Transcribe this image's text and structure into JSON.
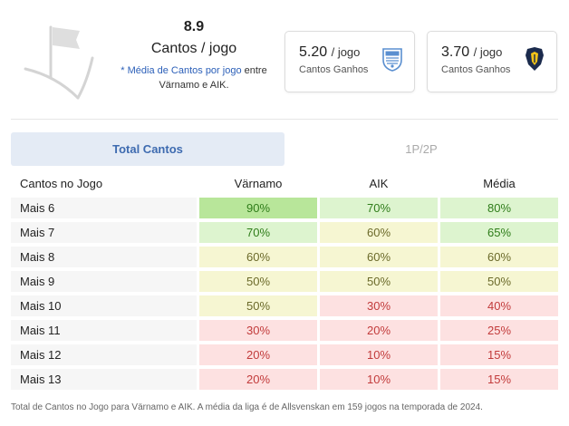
{
  "summary": {
    "total": "8.9",
    "title": "Cantos / jogo",
    "note_blue": "* Média de Cantos por jogo",
    "note_rest": " entre Värnamo e AIK."
  },
  "teams": [
    {
      "value": "5.20",
      "per": "/ jogo",
      "label": "Cantos Ganhos",
      "crest": "varnamo-crest-icon"
    },
    {
      "value": "3.70",
      "per": "/ jogo",
      "label": "Cantos Ganhos",
      "crest": "aik-crest-icon"
    }
  ],
  "tabs": [
    {
      "label": "Total Cantos",
      "active": true
    },
    {
      "label": "1P/2P",
      "active": false
    }
  ],
  "table": {
    "headers": [
      "Cantos no Jogo",
      "Värnamo",
      "AIK",
      "Média"
    ],
    "rows": [
      {
        "label": "Mais 6",
        "varnamo": "90%",
        "aik": "70%",
        "media": "80%"
      },
      {
        "label": "Mais 7",
        "varnamo": "70%",
        "aik": "60%",
        "media": "65%"
      },
      {
        "label": "Mais 8",
        "varnamo": "60%",
        "aik": "60%",
        "media": "60%"
      },
      {
        "label": "Mais 9",
        "varnamo": "50%",
        "aik": "50%",
        "media": "50%"
      },
      {
        "label": "Mais 10",
        "varnamo": "50%",
        "aik": "30%",
        "media": "40%"
      },
      {
        "label": "Mais 11",
        "varnamo": "30%",
        "aik": "20%",
        "media": "25%"
      },
      {
        "label": "Mais 12",
        "varnamo": "20%",
        "aik": "10%",
        "media": "15%"
      },
      {
        "label": "Mais 13",
        "varnamo": "20%",
        "aik": "10%",
        "media": "15%"
      }
    ]
  },
  "colors": {
    "accent": "#3e6bb0",
    "tab_active_bg": "#e4ebf5",
    "strong_green": "#b8e69a",
    "light_green": "#ddf4cf",
    "yellow": "#f6f6d2",
    "pink": "#fde1e1",
    "green_text": "#2f7d1a",
    "yellow_text": "#6b6a2a",
    "red_text": "#c23b3b"
  },
  "footer": "Total de Cantos no Jogo para Värnamo e AIK. A média da liga é de Allsvenskan em 159 jogos na temporada de 2024."
}
